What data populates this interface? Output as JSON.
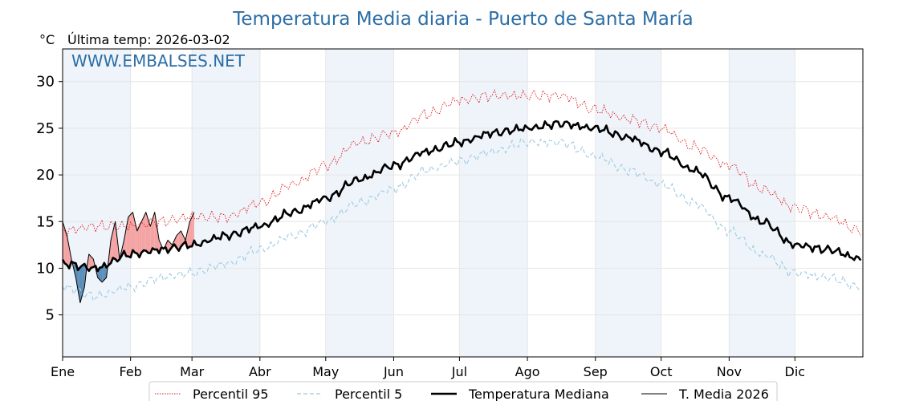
{
  "chart_data": {
    "type": "line",
    "title": "Temperatura Media diaria - Puerto de Santa María",
    "unit_label": "°C",
    "last_temp_label": "Última temp: 2026-03-02",
    "watermark": "WWW.EMBALSES.NET",
    "x_ticks": [
      "Ene",
      "Feb",
      "Mar",
      "Abr",
      "May",
      "Jun",
      "Jul",
      "Ago",
      "Sep",
      "Oct",
      "Nov",
      "Dic"
    ],
    "x_tick_days": [
      0,
      31,
      59,
      90,
      120,
      151,
      181,
      212,
      243,
      273,
      304,
      334
    ],
    "xlim": [
      0,
      365
    ],
    "y_ticks": [
      5,
      10,
      15,
      20,
      25,
      30
    ],
    "ylim": [
      0.5,
      33.5
    ],
    "grid": true,
    "legend_position": "bottom-center",
    "colors": {
      "p95": "#e31a1c",
      "p5": "#9ecae1",
      "median": "#000000",
      "year": "#000000",
      "above": "#f4a3a3",
      "below": "#5b8db8",
      "band": "#eef4fa",
      "title": "#2c6ea6"
    },
    "median_anchors": {
      "x": [
        0,
        15,
        31,
        45,
        59,
        75,
        90,
        105,
        120,
        135,
        151,
        166,
        181,
        196,
        212,
        227,
        243,
        258,
        273,
        288,
        304,
        319,
        334,
        349,
        364
      ],
      "y": [
        10.5,
        10.0,
        11.5,
        12.0,
        12.5,
        13.5,
        14.5,
        16.0,
        17.5,
        19.5,
        21.0,
        22.5,
        23.5,
        24.5,
        25.0,
        25.5,
        25.0,
        24.0,
        22.5,
        20.5,
        17.5,
        15.0,
        12.5,
        12.0,
        11.0
      ]
    },
    "p95_anchors": {
      "x": [
        0,
        15,
        31,
        45,
        59,
        75,
        90,
        105,
        120,
        135,
        151,
        166,
        181,
        196,
        212,
        227,
        243,
        258,
        273,
        288,
        304,
        319,
        334,
        349,
        364
      ],
      "y": [
        14.0,
        14.5,
        14.5,
        15.0,
        15.5,
        15.5,
        17.0,
        19.0,
        21.0,
        23.5,
        24.5,
        26.5,
        28.0,
        28.5,
        28.5,
        28.5,
        27.0,
        26.0,
        25.0,
        23.0,
        21.0,
        18.5,
        16.5,
        15.5,
        14.0
      ]
    },
    "p5_anchors": {
      "x": [
        0,
        15,
        31,
        45,
        59,
        75,
        90,
        105,
        120,
        135,
        151,
        166,
        181,
        196,
        212,
        227,
        243,
        258,
        273,
        288,
        304,
        319,
        334,
        349,
        364
      ],
      "y": [
        8.0,
        7.0,
        8.0,
        9.0,
        9.5,
        10.5,
        12.0,
        13.5,
        15.0,
        17.0,
        18.5,
        20.5,
        21.5,
        22.5,
        23.5,
        23.5,
        22.0,
        20.5,
        19.0,
        17.0,
        14.0,
        11.5,
        9.5,
        9.0,
        8.0
      ]
    },
    "year_2026": {
      "x": [
        0,
        2,
        4,
        6,
        8,
        10,
        11,
        12,
        14,
        16,
        18,
        20,
        22,
        24,
        26,
        28,
        30,
        32,
        34,
        36,
        38,
        40,
        42,
        44,
        46,
        48,
        50,
        52,
        54,
        56,
        58,
        60
      ],
      "y": [
        15.0,
        13.5,
        11.0,
        9.0,
        6.3,
        8.0,
        10.0,
        11.5,
        11.0,
        9.0,
        8.5,
        9.0,
        13.0,
        15.0,
        11.0,
        13.0,
        15.5,
        16.0,
        14.0,
        15.0,
        16.0,
        14.5,
        16.0,
        13.0,
        12.0,
        13.0,
        12.5,
        13.5,
        14.0,
        13.0,
        15.0,
        16.0
      ]
    },
    "series": [
      {
        "name": "Percentil 95",
        "style": "dotted-red"
      },
      {
        "name": "Percentil 5",
        "style": "dashed-lightblue"
      },
      {
        "name": "Temperatura Mediana",
        "style": "thick-black"
      },
      {
        "name": "T. Media 2026",
        "style": "thin-black"
      }
    ]
  }
}
